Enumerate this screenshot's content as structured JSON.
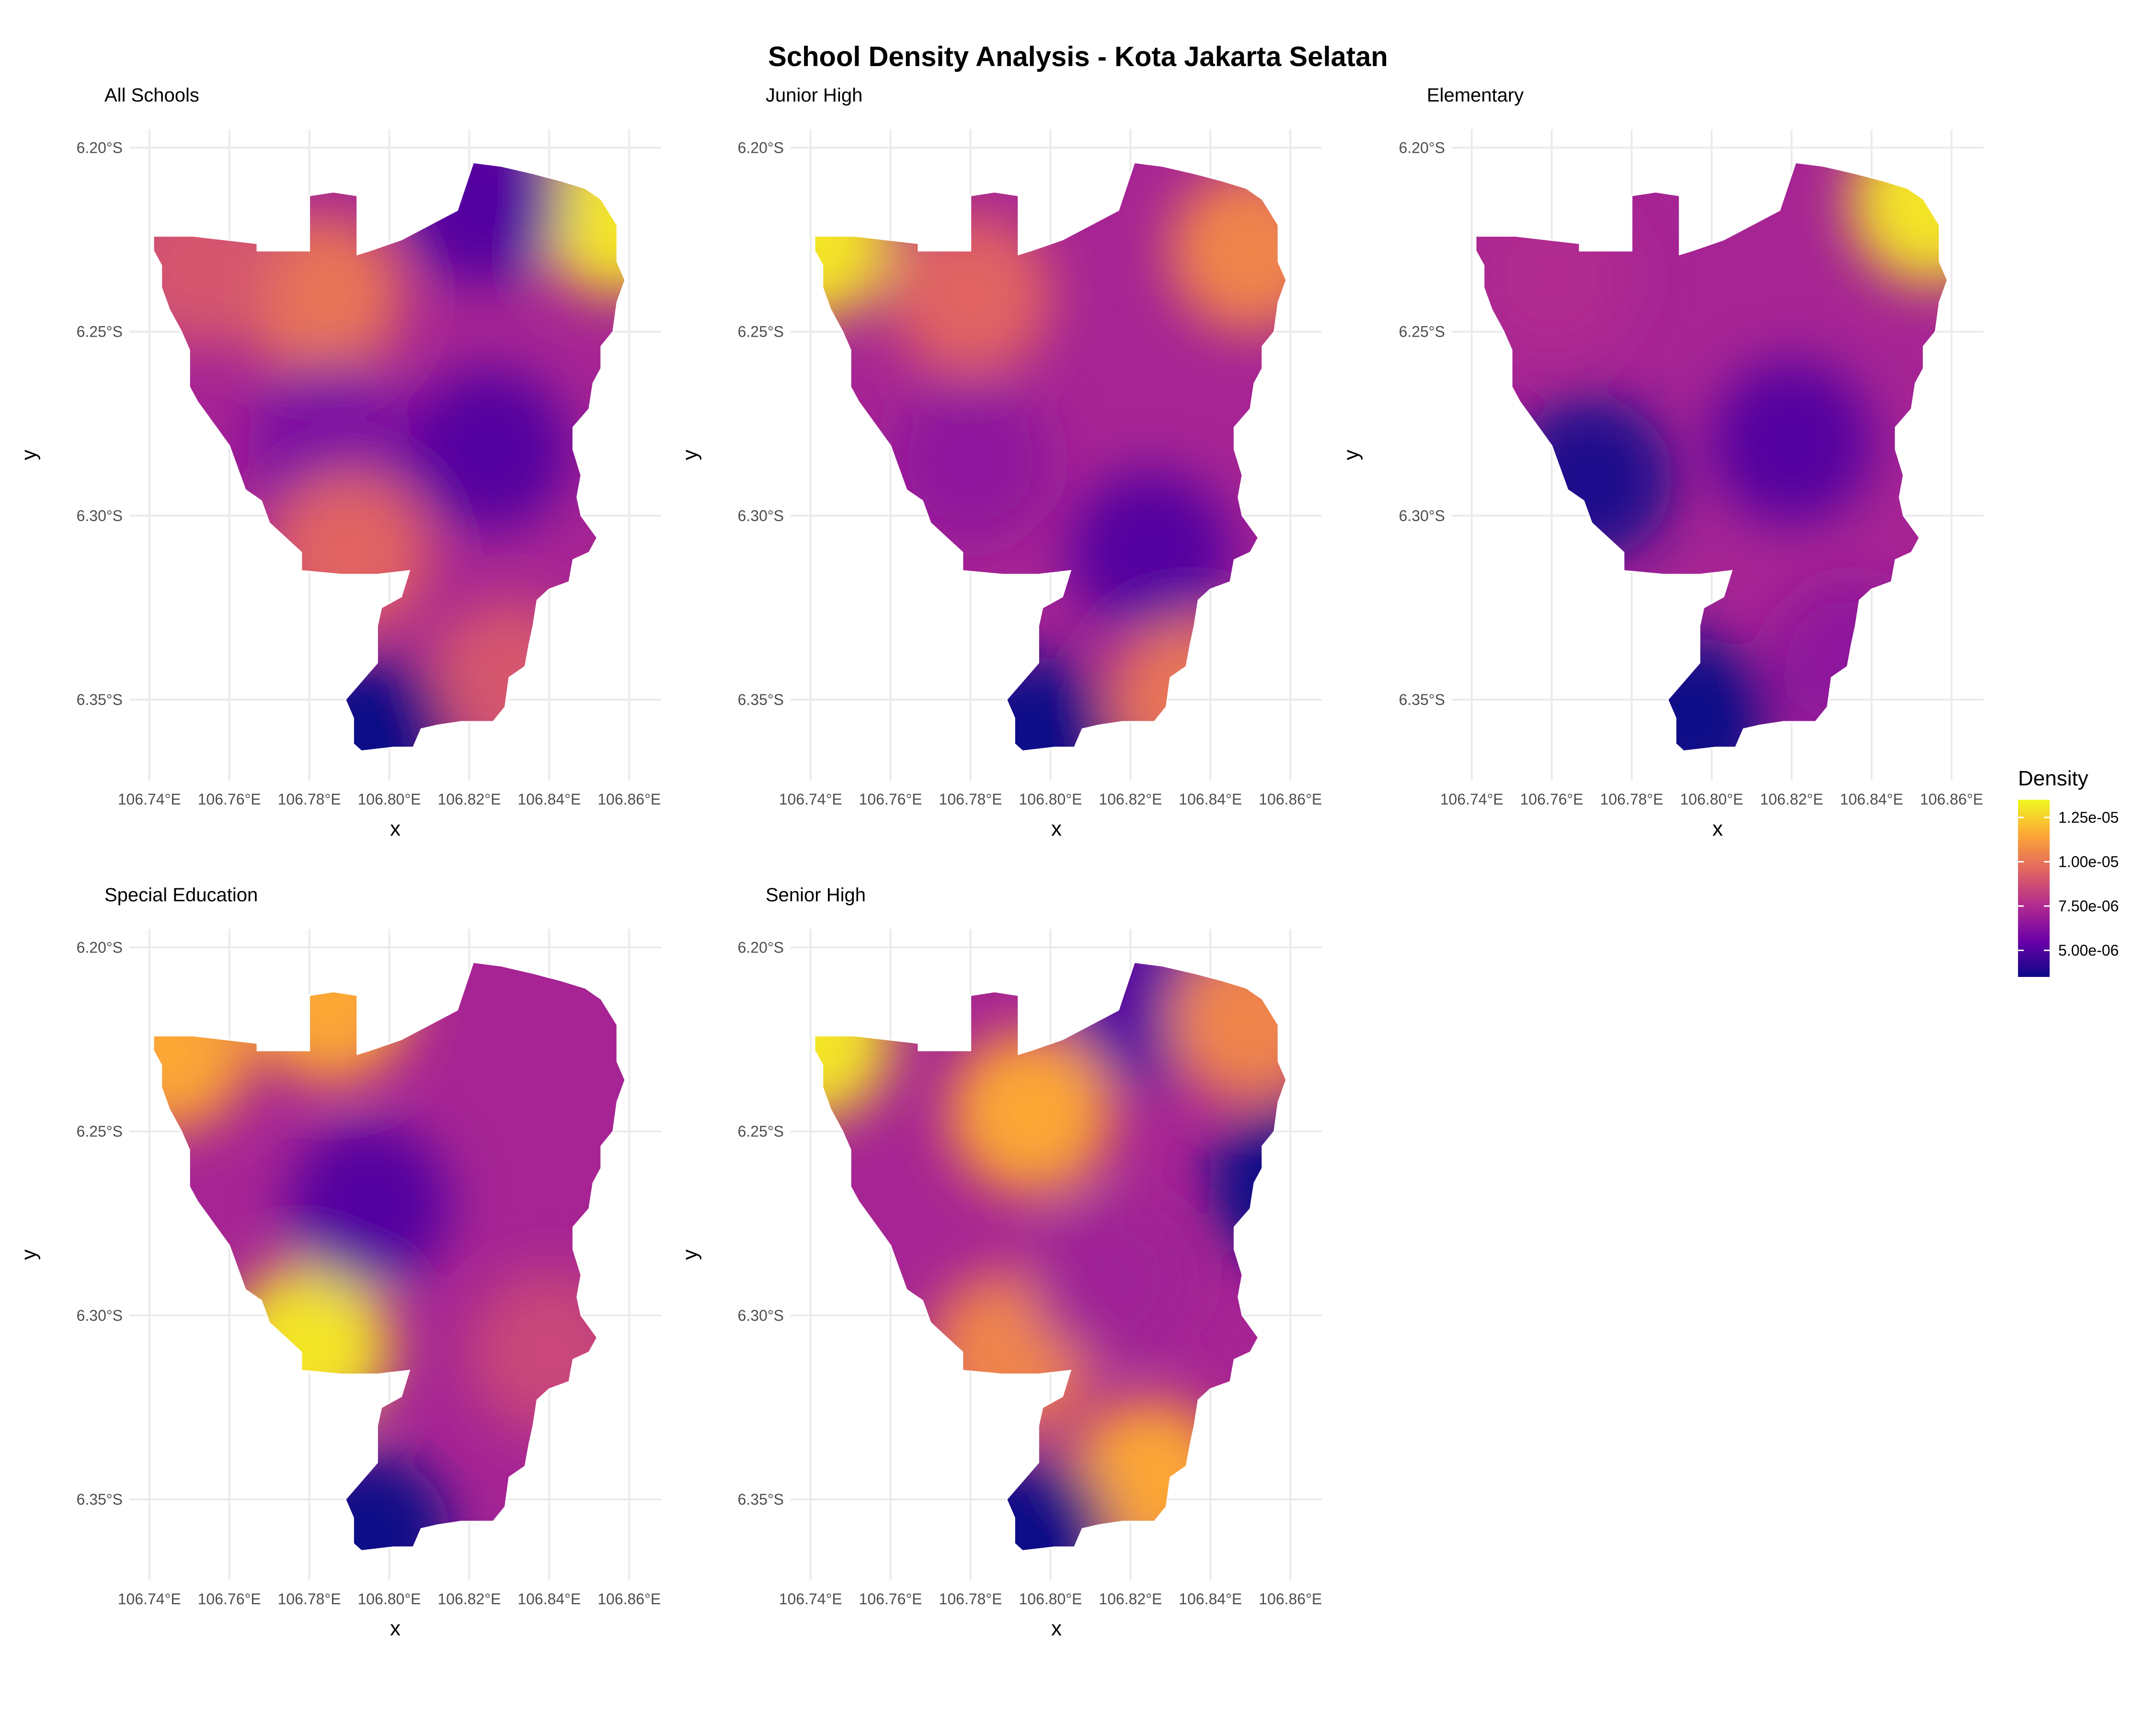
{
  "title": "School Density Analysis - Kota Jakarta Selatan",
  "panels": [
    {
      "title": "All Schools",
      "hotspots": [
        {
          "lon": 106.857,
          "lat": -6.218,
          "value": 1.3e-05
        },
        {
          "lon": 106.783,
          "lat": -6.24,
          "value": 1e-05
        },
        {
          "lon": 106.752,
          "lat": -6.232,
          "value": 9e-06
        },
        {
          "lon": 106.825,
          "lat": -6.282,
          "value": 5e-06
        },
        {
          "lon": 106.823,
          "lat": -6.215,
          "value": 5e-06
        },
        {
          "lon": 106.785,
          "lat": -6.28,
          "value": 6e-06
        },
        {
          "lon": 106.79,
          "lat": -6.31,
          "value": 9.5e-06
        },
        {
          "lon": 106.83,
          "lat": -6.345,
          "value": 9e-06
        },
        {
          "lon": 106.795,
          "lat": -6.36,
          "value": 3.5e-06
        }
      ]
    },
    {
      "title": "Junior High",
      "hotspots": [
        {
          "lon": 106.74,
          "lat": -6.225,
          "value": 1.3e-05
        },
        {
          "lon": 106.78,
          "lat": -6.24,
          "value": 9.5e-06
        },
        {
          "lon": 106.85,
          "lat": -6.228,
          "value": 1.05e-05
        },
        {
          "lon": 106.825,
          "lat": -6.31,
          "value": 5e-06
        },
        {
          "lon": 106.835,
          "lat": -6.35,
          "value": 1e-05
        },
        {
          "lon": 106.795,
          "lat": -6.36,
          "value": 3.5e-06
        },
        {
          "lon": 106.78,
          "lat": -6.285,
          "value": 6.5e-06
        }
      ]
    },
    {
      "title": "Elementary",
      "hotspots": [
        {
          "lon": 106.855,
          "lat": -6.215,
          "value": 1.3e-05
        },
        {
          "lon": 106.77,
          "lat": -6.29,
          "value": 3.8e-06
        },
        {
          "lon": 106.82,
          "lat": -6.28,
          "value": 5e-06
        },
        {
          "lon": 106.76,
          "lat": -6.235,
          "value": 7.5e-06
        },
        {
          "lon": 106.795,
          "lat": -6.355,
          "value": 3.5e-06
        },
        {
          "lon": 106.835,
          "lat": -6.34,
          "value": 6.5e-06
        }
      ]
    },
    {
      "title": "Special Education",
      "hotspots": [
        {
          "lon": 106.745,
          "lat": -6.228,
          "value": 1.15e-05
        },
        {
          "lon": 106.785,
          "lat": -6.215,
          "value": 1.15e-05
        },
        {
          "lon": 106.78,
          "lat": -6.308,
          "value": 1.3e-05
        },
        {
          "lon": 106.795,
          "lat": -6.27,
          "value": 5e-06
        },
        {
          "lon": 106.795,
          "lat": -6.36,
          "value": 3.5e-06
        },
        {
          "lon": 106.84,
          "lat": -6.31,
          "value": 8.5e-06
        }
      ]
    },
    {
      "title": "Senior High",
      "hotspots": [
        {
          "lon": 106.74,
          "lat": -6.225,
          "value": 1.3e-05
        },
        {
          "lon": 106.795,
          "lat": -6.245,
          "value": 1.15e-05
        },
        {
          "lon": 106.825,
          "lat": -6.215,
          "value": 5e-06
        },
        {
          "lon": 106.85,
          "lat": -6.22,
          "value": 1.05e-05
        },
        {
          "lon": 106.86,
          "lat": -6.265,
          "value": 3.5e-06
        },
        {
          "lon": 106.79,
          "lat": -6.31,
          "value": 1.05e-05
        },
        {
          "lon": 106.825,
          "lat": -6.345,
          "value": 1.15e-05
        },
        {
          "lon": 106.795,
          "lat": -6.36,
          "value": 3.5e-06
        },
        {
          "lon": 106.815,
          "lat": -6.29,
          "value": 7e-06
        }
      ]
    }
  ],
  "axes": {
    "x_label": "x",
    "y_label": "y",
    "x_ticks": [
      {
        "value": 106.74,
        "label": "106.74°E"
      },
      {
        "value": 106.76,
        "label": "106.76°E"
      },
      {
        "value": 106.78,
        "label": "106.78°E"
      },
      {
        "value": 106.8,
        "label": "106.80°E"
      },
      {
        "value": 106.82,
        "label": "106.82°E"
      },
      {
        "value": 106.84,
        "label": "106.84°E"
      },
      {
        "value": 106.86,
        "label": "106.86°E"
      }
    ],
    "y_ticks": [
      {
        "value": -6.2,
        "label": "6.20°S"
      },
      {
        "value": -6.25,
        "label": "6.25°S"
      },
      {
        "value": -6.3,
        "label": "6.30°S"
      },
      {
        "value": -6.35,
        "label": "6.35°S"
      }
    ],
    "xlim": [
      106.735,
      106.868
    ],
    "ylim": [
      -6.372,
      -6.195
    ]
  },
  "legend": {
    "title": "Density",
    "min": 3.5e-06,
    "max": 1.35e-05,
    "ticks": [
      {
        "value": 1.25e-05,
        "label": "1.25e-05"
      },
      {
        "value": 1e-05,
        "label": "1.00e-05"
      },
      {
        "value": 7.5e-06,
        "label": "7.50e-06"
      },
      {
        "value": 5e-06,
        "label": "5.00e-06"
      }
    ],
    "palette": [
      "#0d0887",
      "#6a00a8",
      "#b12a90",
      "#e16462",
      "#fca636",
      "#f0f921"
    ]
  },
  "boundary": [
    [
      106.741,
      -6.224
    ],
    [
      106.751,
      -6.224
    ],
    [
      106.767,
      -6.226
    ],
    [
      106.767,
      -6.228
    ],
    [
      106.78,
      -6.228
    ],
    [
      106.78,
      -6.213
    ],
    [
      106.786,
      -6.212
    ],
    [
      106.792,
      -6.213
    ],
    [
      106.792,
      -6.229
    ],
    [
      106.795,
      -6.228
    ],
    [
      106.803,
      -6.225
    ],
    [
      106.81,
      -6.221
    ],
    [
      106.817,
      -6.217
    ],
    [
      106.821,
      -6.204
    ],
    [
      106.828,
      -6.205
    ],
    [
      106.836,
      -6.207
    ],
    [
      106.843,
      -6.209
    ],
    [
      106.849,
      -6.211
    ],
    [
      106.853,
      -6.214
    ],
    [
      106.857,
      -6.221
    ],
    [
      106.857,
      -6.231
    ],
    [
      106.859,
      -6.236
    ],
    [
      106.857,
      -6.242
    ],
    [
      106.856,
      -6.25
    ],
    [
      106.853,
      -6.254
    ],
    [
      106.853,
      -6.26
    ],
    [
      106.851,
      -6.264
    ],
    [
      106.85,
      -6.271
    ],
    [
      106.846,
      -6.276
    ],
    [
      106.846,
      -6.282
    ],
    [
      106.848,
      -6.289
    ],
    [
      106.847,
      -6.295
    ],
    [
      106.848,
      -6.3
    ],
    [
      106.852,
      -6.306
    ],
    [
      106.85,
      -6.31
    ],
    [
      106.846,
      -6.312
    ],
    [
      106.845,
      -6.318
    ],
    [
      106.84,
      -6.32
    ],
    [
      106.837,
      -6.323
    ],
    [
      106.836,
      -6.33
    ],
    [
      106.835,
      -6.335
    ],
    [
      106.834,
      -6.341
    ],
    [
      106.83,
      -6.344
    ],
    [
      106.829,
      -6.352
    ],
    [
      106.826,
      -6.356
    ],
    [
      106.818,
      -6.356
    ],
    [
      106.812,
      -6.357
    ],
    [
      106.808,
      -6.358
    ],
    [
      106.806,
      -6.363
    ],
    [
      106.801,
      -6.363
    ],
    [
      106.793,
      -6.364
    ],
    [
      106.791,
      -6.362
    ],
    [
      106.791,
      -6.355
    ],
    [
      106.789,
      -6.35
    ],
    [
      106.793,
      -6.345
    ],
    [
      106.797,
      -6.34
    ],
    [
      106.797,
      -6.33
    ],
    [
      106.798,
      -6.325
    ],
    [
      106.803,
      -6.322
    ],
    [
      106.805,
      -6.315
    ],
    [
      106.797,
      -6.316
    ],
    [
      106.788,
      -6.316
    ],
    [
      106.778,
      -6.315
    ],
    [
      106.778,
      -6.31
    ],
    [
      106.774,
      -6.306
    ],
    [
      106.77,
      -6.302
    ],
    [
      106.768,
      -6.296
    ],
    [
      106.764,
      -6.293
    ],
    [
      106.762,
      -6.287
    ],
    [
      106.76,
      -6.281
    ],
    [
      106.756,
      -6.275
    ],
    [
      106.752,
      -6.269
    ],
    [
      106.75,
      -6.265
    ],
    [
      106.75,
      -6.255
    ],
    [
      106.748,
      -6.25
    ],
    [
      106.745,
      -6.244
    ],
    [
      106.743,
      -6.238
    ],
    [
      106.743,
      -6.232
    ],
    [
      106.741,
      -6.228
    ]
  ]
}
